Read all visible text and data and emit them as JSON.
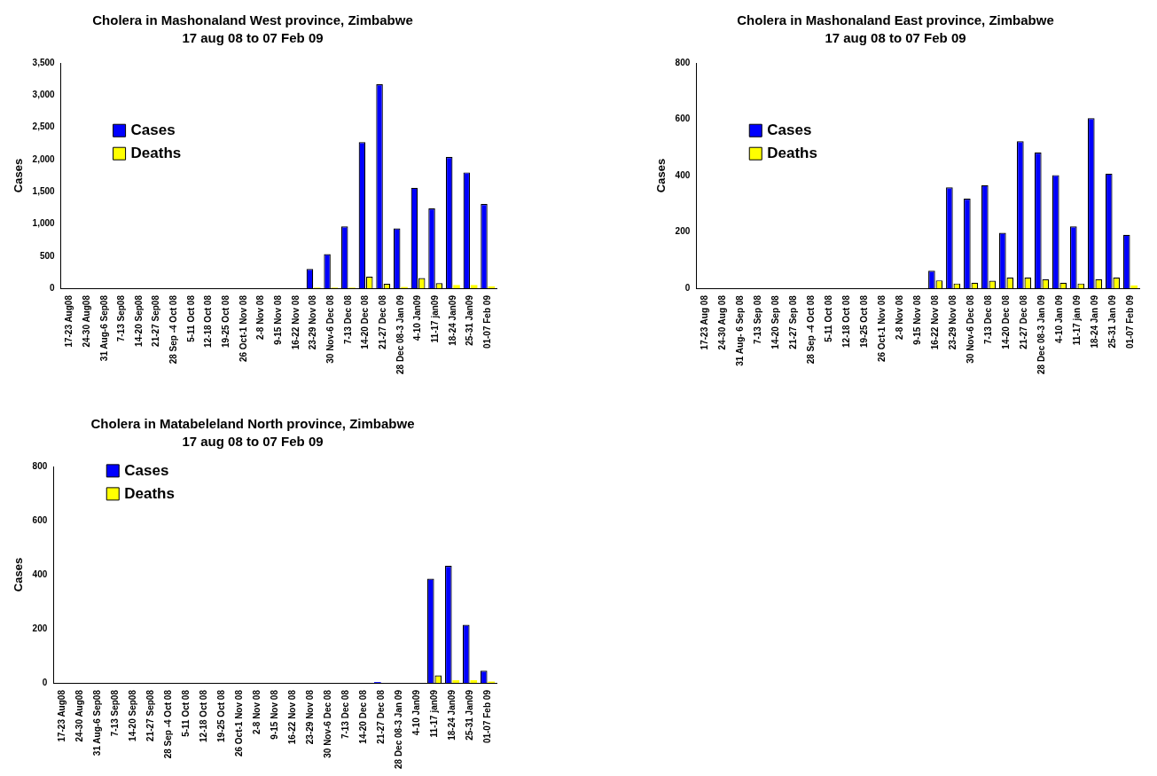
{
  "chart_data": [
    {
      "type": "bar",
      "title": "Cholera in Mashonaland West province, Zimbabwe",
      "subtitle": "17 aug 08 to 07 Feb 09",
      "ylabel": "Cases",
      "categories": [
        "17-23 Aug08",
        "24-30 Aug08",
        "31 Aug-6 Sep08",
        "7-13 Sep08",
        "14-20 Sep08",
        "21-27 Sep08",
        "28 Sep -4 Oct 08",
        "5-11 Oct 08",
        "12-18 Oct 08",
        "19-25 Oct 08",
        "26 Oct-1 Nov 08",
        "2-8 Nov 08",
        "9-15 Nov 08",
        "16-22 Nov 08",
        "23-29 Nov 08",
        "30 Nov-6 Dec 08",
        "7-13 Dec 08",
        "14-20 Dec 08",
        "21-27 Dec 08",
        "28 Dec 08-3 Jan 09",
        "4-10 Jan09",
        "11-17 jan09",
        "18-24 Jan09",
        "25-31 Jan09",
        "01-07 Feb 09"
      ],
      "series": [
        {
          "name": "Cases",
          "color": "#0000ff",
          "values": [
            0,
            0,
            0,
            0,
            0,
            0,
            0,
            0,
            0,
            0,
            0,
            0,
            0,
            0,
            300,
            530,
            960,
            2270,
            3170,
            930,
            1560,
            1240,
            2040,
            1800,
            1310
          ]
        },
        {
          "name": "Deaths",
          "color": "#ffff00",
          "values": [
            0,
            0,
            0,
            0,
            0,
            0,
            0,
            0,
            0,
            0,
            0,
            0,
            0,
            0,
            10,
            10,
            10,
            180,
            70,
            20,
            160,
            80,
            50,
            50,
            30
          ]
        }
      ],
      "ylim": [
        0,
        3500
      ],
      "yticks": [
        0,
        500,
        {
          "value": 1000,
          "label": "1,000"
        },
        {
          "value": 1500,
          "label": "1,500"
        },
        {
          "value": 2000,
          "label": "2,000"
        },
        {
          "value": 2500,
          "label": "2,500"
        },
        {
          "value": 3000,
          "label": "3,000"
        },
        {
          "value": 3500,
          "label": "3,500"
        }
      ],
      "grid": false,
      "legend": "top left"
    },
    {
      "type": "bar",
      "title": "Cholera in Mashonaland East province, Zimbabwe",
      "subtitle": "17 aug 08 to 07 Feb 09",
      "ylabel": "Cases",
      "categories": [
        "17-23 Aug 08",
        "24-30 Aug 08",
        "31 Aug- 6 Sep 08",
        "7-13 Sep 08",
        "14-20 Sep 08",
        "21-27 Sep 08",
        "28 Sep -4 Oct 08",
        "5-11 Oct 08",
        "12-18 Oct 08",
        "19-25 Oct 08",
        "26 Oct-1 Nov 08",
        "2-8 Nov 08",
        "9-15 Nov 08",
        "16-22 Nov 08",
        "23-29 Nov 08",
        "30 Nov-6 Dec 08",
        "7-13 Dec 08",
        "14-20 Dec 08",
        "21-27 Dec 08",
        "28 Dec 08-3 Jan 09",
        "4-10 Jan 09",
        "11-17 jan 09",
        "18-24 Jan 09",
        "25-31 Jan 09",
        "01-07 Feb 09"
      ],
      "series": [
        {
          "name": "Cases",
          "color": "#0000ff",
          "values": [
            0,
            0,
            0,
            0,
            0,
            0,
            0,
            0,
            0,
            0,
            0,
            0,
            0,
            62,
            358,
            318,
            366,
            197,
            522,
            482,
            402,
            220,
            604,
            407,
            190
          ]
        },
        {
          "name": "Deaths",
          "color": "#ffff00",
          "values": [
            0,
            0,
            0,
            0,
            0,
            0,
            0,
            0,
            0,
            0,
            0,
            0,
            0,
            28,
            17,
            20,
            27,
            38,
            38,
            32,
            20,
            17,
            32,
            38,
            10
          ]
        }
      ],
      "ylim": [
        0,
        800
      ],
      "yticks": [
        0,
        200,
        400,
        600,
        800
      ],
      "grid": false,
      "legend": "top left"
    },
    {
      "type": "bar",
      "title": "Cholera in Matabeleland North province, Zimbabwe",
      "subtitle": "17 aug 08 to 07 Feb 09",
      "ylabel": "Cases",
      "categories": [
        "17-23 Aug08",
        "24-30 Aug08",
        "31 Aug-6 Sep08",
        "7-13 Sep08",
        "14-20 Sep08",
        "21-27 Sep08",
        "28 Sep -4 Oct 08",
        "5-11 Oct 08",
        "12-18 Oct 08",
        "19-25 Oct 08",
        "26 Oct-1 Nov 08",
        "2-8 Nov 08",
        "9-15 Nov 08",
        "16-22 Nov 08",
        "23-29 Nov 08",
        "30 Nov-6 Dec 08",
        "7-13 Dec 08",
        "14-20 Dec 08",
        "21-27 Dec 08",
        "28 Dec 08-3 Jan 09",
        "4-10 Jan09",
        "11-17 jan09",
        "18-24 Jan09",
        "25-31 Jan09",
        "01-07 Feb 09"
      ],
      "series": [
        {
          "name": "Cases",
          "color": "#0000ff",
          "values": [
            0,
            0,
            0,
            0,
            0,
            0,
            0,
            0,
            0,
            0,
            0,
            0,
            0,
            0,
            0,
            0,
            0,
            0,
            3,
            0,
            0,
            385,
            433,
            215,
            45
          ]
        },
        {
          "name": "Deaths",
          "color": "#ffff00",
          "values": [
            0,
            0,
            0,
            0,
            0,
            0,
            0,
            0,
            0,
            0,
            0,
            0,
            0,
            0,
            0,
            0,
            0,
            0,
            0,
            0,
            0,
            28,
            10,
            10,
            5
          ]
        }
      ],
      "ylim": [
        0,
        800
      ],
      "yticks": [
        0,
        200,
        400,
        600,
        800
      ],
      "grid": false,
      "legend": "top left"
    }
  ]
}
